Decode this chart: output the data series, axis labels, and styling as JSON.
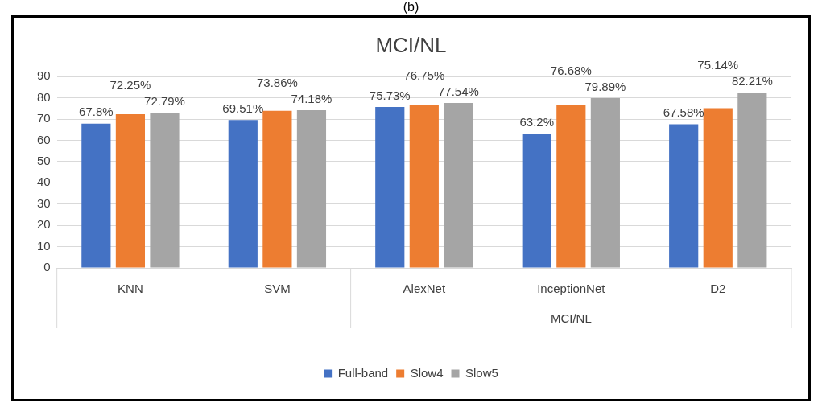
{
  "chart_data": {
    "type": "bar",
    "title": "MCI/NL",
    "categories": [
      "KNN",
      "SVM",
      "AlexNet",
      "InceptionNet",
      "D2"
    ],
    "series": [
      {
        "name": "Full-band",
        "color": "#4472c4",
        "values": [
          67.8,
          69.51,
          75.73,
          63.2,
          67.58
        ],
        "value_labels": [
          "67.8%",
          "69.51%",
          "75.73%",
          "63.2%",
          "67.58%"
        ]
      },
      {
        "name": "Slow4",
        "color": "#ed7d31",
        "values": [
          72.25,
          73.86,
          76.75,
          76.68,
          75.14
        ],
        "value_labels": [
          "72.25%",
          "73.86%",
          "76.75%",
          "76.68%",
          "75.14%"
        ]
      },
      {
        "name": "Slow5",
        "color": "#a5a5a5",
        "values": [
          72.79,
          74.18,
          77.54,
          79.89,
          82.21
        ],
        "value_labels": [
          "72.79%",
          "74.18%",
          "77.54%",
          "79.89%",
          "82.21%"
        ]
      }
    ],
    "ylim": [
      0,
      90
    ],
    "yticks": [
      0,
      10,
      20,
      30,
      40,
      50,
      60,
      70,
      80,
      90
    ],
    "grid": "y",
    "legend": "bottom",
    "annotations": [
      "(b)",
      "MCI/NL"
    ]
  }
}
